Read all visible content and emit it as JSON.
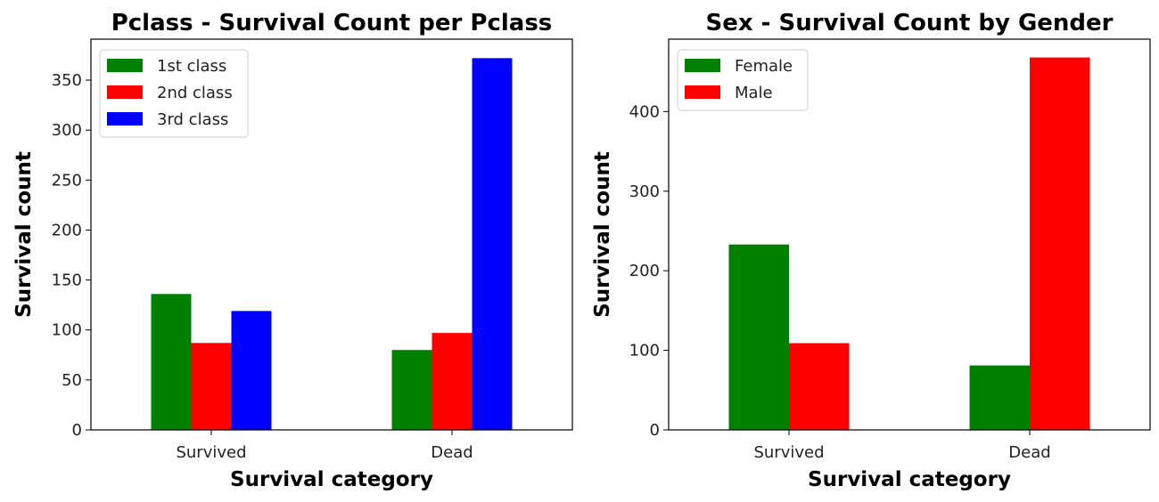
{
  "chart_data": [
    {
      "type": "bar",
      "title": "Pclass - Survival Count per Pclass",
      "xlabel": "Survival category",
      "ylabel": "Survival count",
      "categories": [
        "Survived",
        "Dead"
      ],
      "series": [
        {
          "name": "1st class",
          "color": "#008000",
          "values": [
            136,
            80
          ]
        },
        {
          "name": "2nd class",
          "color": "#ff0000",
          "values": [
            87,
            97
          ]
        },
        {
          "name": "3rd class",
          "color": "#0000ff",
          "values": [
            119,
            372
          ]
        }
      ],
      "ylim": [
        0,
        391
      ],
      "yticks": [
        0,
        50,
        100,
        150,
        200,
        250,
        300,
        350
      ],
      "legend": "top-left",
      "grid": false
    },
    {
      "type": "bar",
      "title": "Sex - Survival Count by Gender",
      "xlabel": "Survival category",
      "ylabel": "Survival count",
      "categories": [
        "Survived",
        "Dead"
      ],
      "series": [
        {
          "name": "Female",
          "color": "#008000",
          "values": [
            233,
            81
          ]
        },
        {
          "name": "Male",
          "color": "#ff0000",
          "values": [
            109,
            468
          ]
        }
      ],
      "ylim": [
        0,
        491
      ],
      "yticks": [
        0,
        100,
        200,
        300,
        400
      ],
      "legend": "top-left",
      "grid": false
    }
  ]
}
